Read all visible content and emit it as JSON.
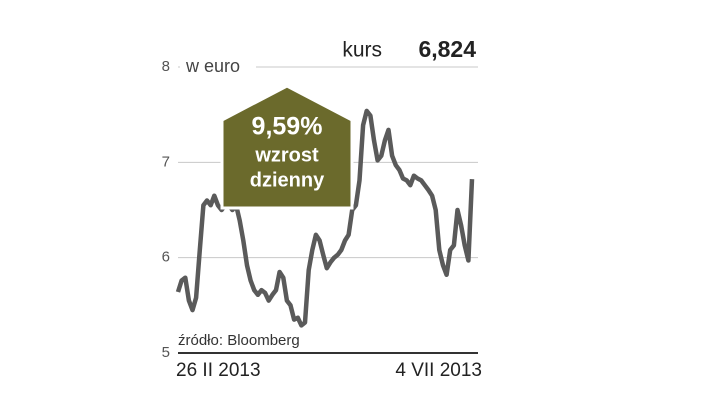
{
  "chart_data": {
    "type": "line",
    "unit_label": "w euro",
    "last_label": "kurs",
    "last_value": "6,824",
    "annotation": {
      "value": "9,59%",
      "line1": "wzrost",
      "line2": "dzienny"
    },
    "source": "źródło: Bloomberg",
    "categories": [
      "26 II 2013",
      null,
      null,
      null,
      null,
      null,
      null,
      null,
      null,
      null,
      null,
      null,
      null,
      null,
      null,
      null,
      null,
      null,
      null,
      null,
      null,
      null,
      null,
      null,
      null,
      null,
      null,
      null,
      null,
      null,
      null,
      null,
      null,
      null,
      null,
      null,
      null,
      null,
      null,
      null,
      null,
      null,
      null,
      null,
      null,
      null,
      null,
      null,
      null,
      null,
      null,
      null,
      null,
      null,
      null,
      null,
      null,
      null,
      null,
      null,
      null,
      null,
      null,
      null,
      null,
      null,
      null,
      null,
      null,
      null,
      null,
      null,
      null,
      null,
      null,
      null,
      null,
      null,
      null,
      null,
      null,
      "4 VII 2013"
    ],
    "series": [
      {
        "name": "kurs",
        "color": "#5a5a5a",
        "values": [
          5.64,
          5.76,
          5.79,
          5.55,
          5.45,
          5.58,
          6.08,
          6.55,
          6.6,
          6.55,
          6.65,
          6.55,
          6.5,
          6.55,
          6.55,
          6.5,
          6.55,
          6.39,
          6.18,
          5.92,
          5.76,
          5.66,
          5.61,
          5.66,
          5.63,
          5.55,
          5.61,
          5.66,
          5.85,
          5.79,
          5.55,
          5.5,
          5.35,
          5.37,
          5.29,
          5.32,
          5.87,
          6.08,
          6.24,
          6.18,
          6.03,
          5.89,
          5.95,
          6.0,
          6.03,
          6.08,
          6.18,
          6.24,
          6.5,
          6.55,
          6.81,
          7.39,
          7.54,
          7.49,
          7.23,
          7.02,
          7.07,
          7.23,
          7.34,
          7.07,
          6.97,
          6.92,
          6.83,
          6.81,
          6.76,
          6.86,
          6.83,
          6.81,
          6.76,
          6.71,
          6.65,
          6.5,
          6.08,
          5.92,
          5.82,
          6.08,
          6.13,
          6.5,
          6.34,
          6.13,
          5.97,
          6.824
        ]
      }
    ],
    "ylim": [
      5,
      8
    ],
    "yticks": [
      5,
      6,
      7,
      8
    ],
    "grid": true
  }
}
